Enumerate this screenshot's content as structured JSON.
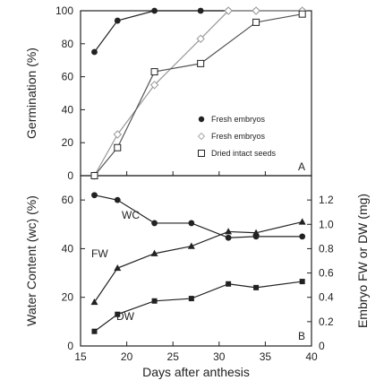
{
  "figure": {
    "x_axis_label": "Days after anthesis",
    "x_ticks": [
      "15",
      "20",
      "25",
      "30",
      "35",
      "40"
    ]
  },
  "chart_data": [
    {
      "type": "line",
      "panel": "A",
      "ylabel": "Germination (%)",
      "xlim": [
        15,
        40
      ],
      "ylim": [
        0,
        100
      ],
      "y_ticks": [
        "0",
        "20",
        "40",
        "60",
        "80",
        "100"
      ],
      "legend_position": "right",
      "series": [
        {
          "name": "Fresh embryos",
          "marker": "filled-circle",
          "x": [
            16.5,
            19,
            23,
            28,
            31,
            34,
            39
          ],
          "y": [
            75,
            94,
            100,
            100,
            100,
            100,
            100
          ]
        },
        {
          "name": "Fresh embryos",
          "marker": "open-diamond",
          "x": [
            16.5,
            19,
            23,
            28,
            31,
            34,
            39
          ],
          "y": [
            0,
            25,
            55,
            83,
            100,
            100,
            100
          ]
        },
        {
          "name": "Dried intact seeds",
          "marker": "open-square",
          "x": [
            16.5,
            19,
            23,
            28,
            34,
            39
          ],
          "y": [
            0,
            17,
            63,
            68,
            93,
            98
          ]
        }
      ]
    },
    {
      "type": "line",
      "panel": "B",
      "ylabel": "Water Content (wc) (%)",
      "y2label": "Embryo FW or DW (mg)",
      "xlim": [
        15,
        40
      ],
      "ylim": [
        0,
        70
      ],
      "y2lim": [
        0,
        1.4
      ],
      "y_ticks": [
        "0",
        "20",
        "40",
        "60"
      ],
      "y2_ticks": [
        "0",
        "0.2",
        "0.4",
        "0.6",
        "0.8",
        "1.0",
        "1.2"
      ],
      "series": [
        {
          "name": "WC",
          "axis": "left",
          "marker": "filled-circle",
          "x": [
            16.5,
            19,
            23,
            27,
            31,
            34,
            39
          ],
          "y": [
            62,
            60,
            50.5,
            50.5,
            44.5,
            45,
            45
          ]
        },
        {
          "name": "FW",
          "axis": "right",
          "marker": "filled-triangle",
          "x": [
            16.5,
            19,
            23,
            27,
            31,
            34,
            39
          ],
          "y": [
            0.36,
            0.64,
            0.76,
            0.82,
            0.94,
            0.93,
            1.02
          ]
        },
        {
          "name": "DW",
          "axis": "right",
          "marker": "filled-square",
          "x": [
            16.5,
            19,
            23,
            27,
            31,
            34,
            39
          ],
          "y": [
            0.12,
            0.26,
            0.37,
            0.39,
            0.51,
            0.48,
            0.53
          ]
        }
      ]
    }
  ]
}
